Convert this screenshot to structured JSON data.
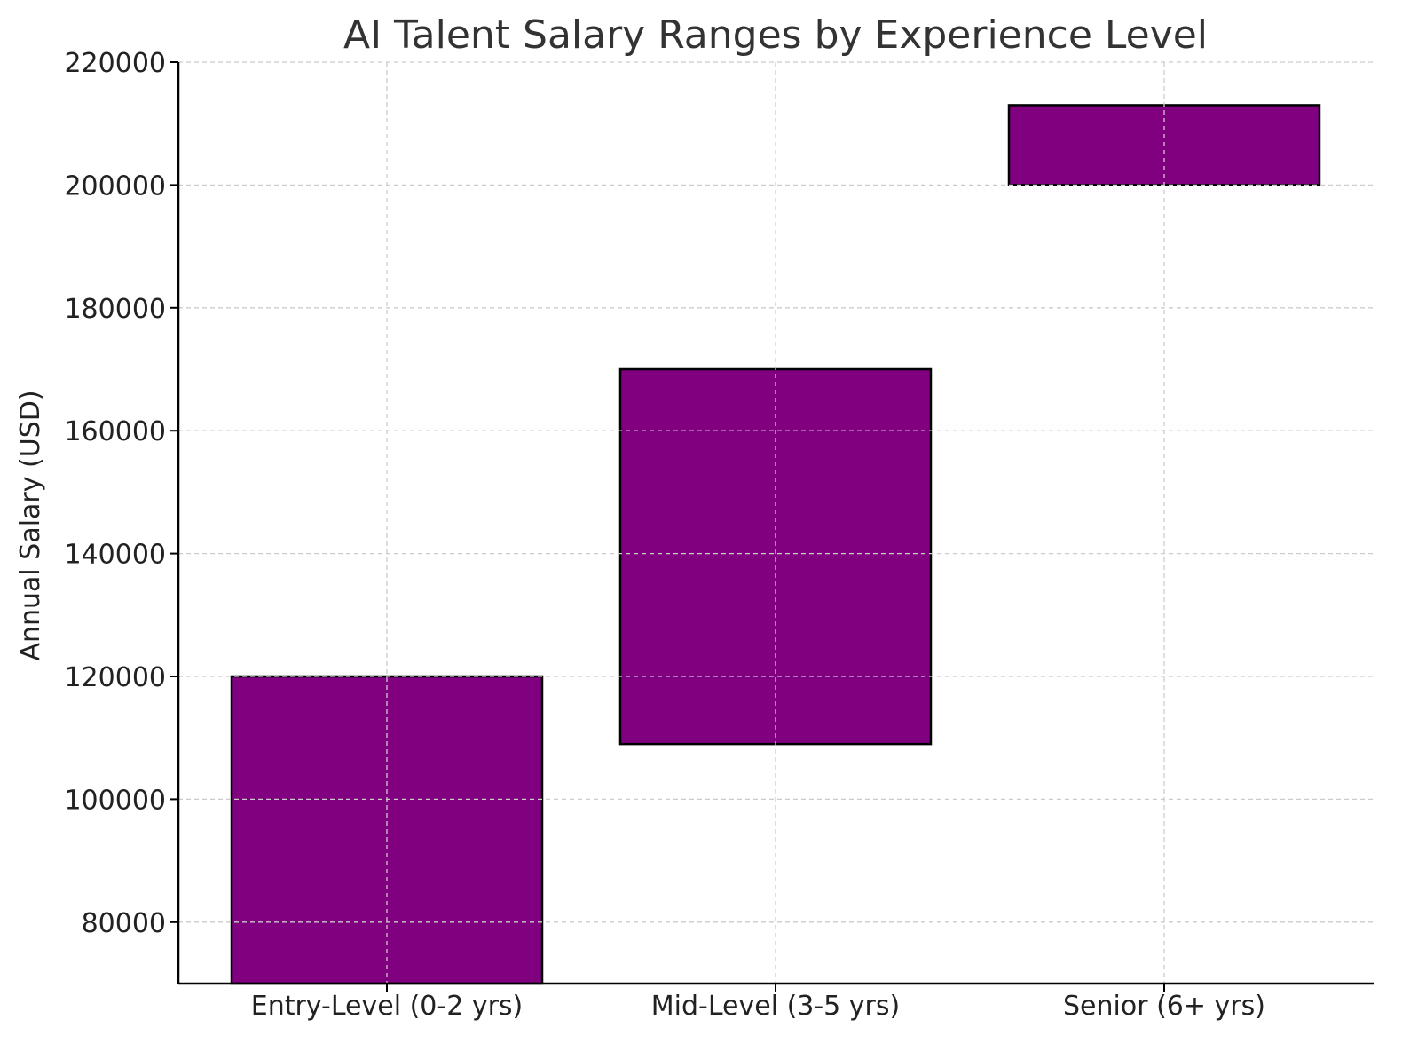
{
  "chart_data": {
    "type": "bar",
    "title": "AI Talent Salary Ranges by Experience Level",
    "xlabel": "",
    "ylabel": "Annual Salary (USD)",
    "categories": [
      "Entry-Level (0-2 yrs)",
      "Mid-Level (3-5 yrs)",
      "Senior (6+ yrs)"
    ],
    "ranges": [
      {
        "low": 70000,
        "high": 120000
      },
      {
        "low": 109000,
        "high": 170000
      },
      {
        "low": 200000,
        "high": 213000
      }
    ],
    "ylim": [
      70000,
      220000
    ],
    "yticks": [
      80000,
      100000,
      120000,
      140000,
      160000,
      180000,
      200000,
      220000
    ],
    "grid": true,
    "bar_color": "#800080",
    "edge_color": "#000000",
    "grid_color": "#cccccc"
  }
}
